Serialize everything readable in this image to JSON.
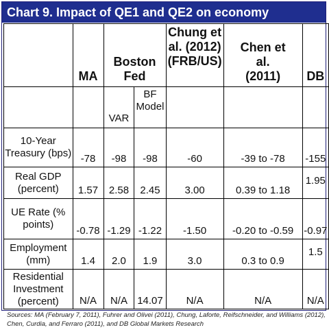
{
  "title": "Chart  9. Impact of QE1 and QE2 on economy",
  "headers": {
    "ma": "MA",
    "boston_fed": "Boston Fed",
    "chung": "Chung et al. (2012) (FRB/US)",
    "chen": "Chen et al. (2011)",
    "db": "DB",
    "var": "VAR",
    "bf_model": "BF Model"
  },
  "rows": [
    {
      "label": "10-Year Treasury (bps)",
      "ma": "-78",
      "var": "-98",
      "bf": "-98",
      "chung": "-60",
      "chen": "-39 to -78",
      "db": "-155"
    },
    {
      "label": "Real GDP (percent)",
      "ma": "1.57",
      "var": "2.58",
      "bf": "2.45",
      "chung": "3.00",
      "chen": "0.39 to 1.18",
      "db": "1.95"
    },
    {
      "label": "UE Rate (% points)",
      "ma": "-0.78",
      "var": "-1.29",
      "bf": "-1.22",
      "chung": "-1.50",
      "chen": "-0.20 to -0.59",
      "db": "-0.97"
    },
    {
      "label": "Employment (mm)",
      "ma": "1.4",
      "var": "2.0",
      "bf": "1.9",
      "chung": "3.0",
      "chen": "0.3 to 0.9",
      "db": "1.5"
    },
    {
      "label": "Residential Investment (percent)",
      "ma": "N/A",
      "var": "N/A",
      "bf": "14.07",
      "chung": "N/A",
      "chen": "N/A",
      "db": "N/A"
    }
  ],
  "sources": "Sources: MA (February 7, 2011), Fuhrer and Olivei (2011), Chung, Laforte, Reifschneider, and Williams (2012), Chen, Curdia, and Ferraro (2011), and DB Global Markets Research"
}
